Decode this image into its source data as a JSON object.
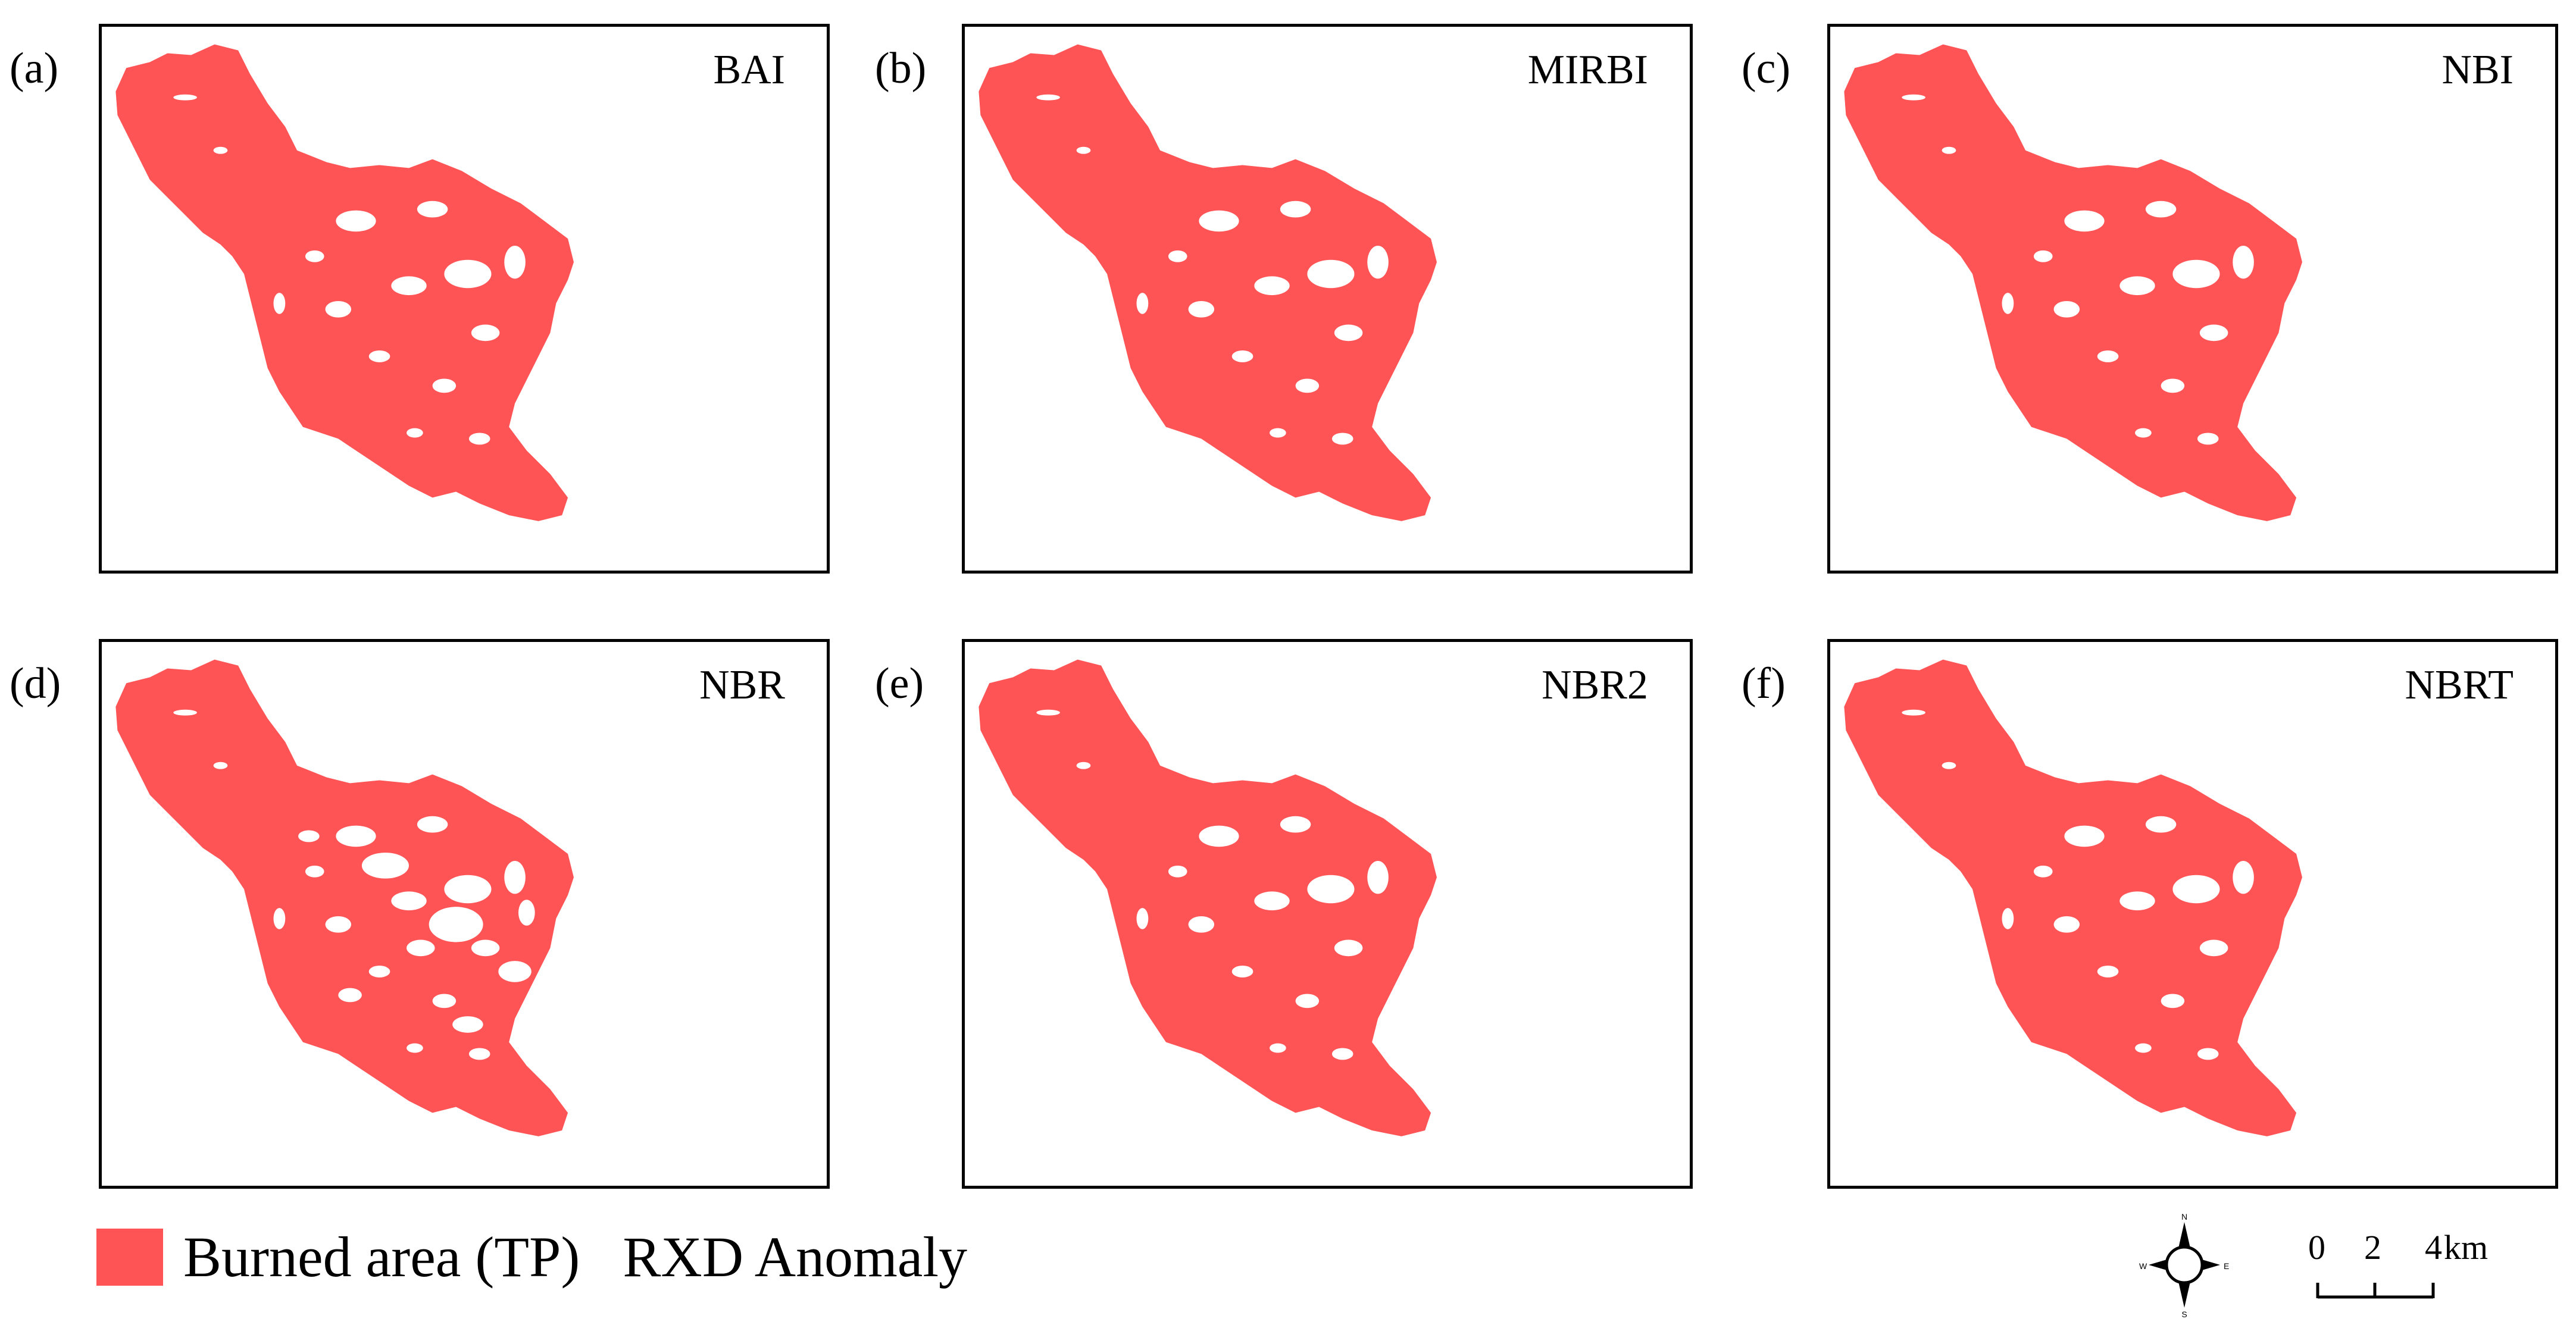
{
  "colors": {
    "burned": "#ff5456",
    "frame": "#000000"
  },
  "panels": [
    {
      "label": "(a)",
      "title": "BAI"
    },
    {
      "label": "(b)",
      "title": "MIRBI"
    },
    {
      "label": "(c)",
      "title": "NBI"
    },
    {
      "label": "(d)",
      "title": "NBR"
    },
    {
      "label": "(e)",
      "title": "NBR2"
    },
    {
      "label": "(f)",
      "title": "NBRT"
    }
  ],
  "legend": {
    "burned_label": "Burned area (TP)",
    "rxd_label": "RXD Anomaly"
  },
  "north_arrow": {
    "n": "N",
    "s": "S",
    "e": "E",
    "w": "W"
  },
  "scale_bar": {
    "ticks": [
      "0",
      "2",
      "4"
    ],
    "unit": "km"
  }
}
